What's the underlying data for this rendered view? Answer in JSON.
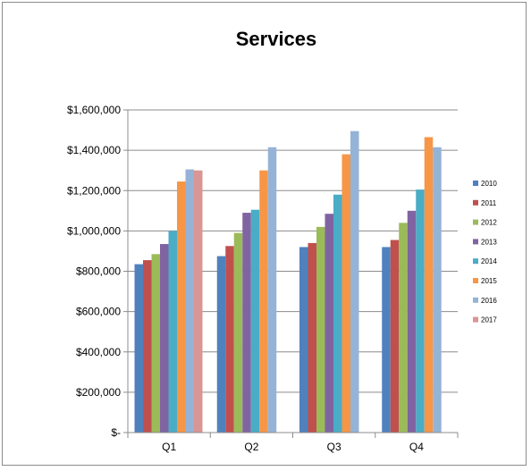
{
  "chart_data": {
    "type": "bar",
    "title": "Services",
    "xlabel": "",
    "ylabel": "",
    "categories": [
      "Q1",
      "Q2",
      "Q3",
      "Q4"
    ],
    "y_ticks": [
      "$-",
      "$200,000",
      "$400,000",
      "$600,000",
      "$800,000",
      "$1,000,000",
      "$1,200,000",
      "$1,400,000",
      "$1,600,000"
    ],
    "ylim": [
      0,
      1600000
    ],
    "grid": true,
    "legend_position": "right",
    "series": [
      {
        "name": "2010",
        "color": "#4f81bd",
        "values": [
          835000,
          875000,
          920000,
          920000
        ]
      },
      {
        "name": "2011",
        "color": "#c0504d",
        "values": [
          855000,
          925000,
          940000,
          955000
        ]
      },
      {
        "name": "2012",
        "color": "#9bbb59",
        "values": [
          885000,
          990000,
          1020000,
          1040000
        ]
      },
      {
        "name": "2013",
        "color": "#8064a2",
        "values": [
          935000,
          1090000,
          1085000,
          1100000
        ]
      },
      {
        "name": "2014",
        "color": "#4bacc6",
        "values": [
          1000000,
          1105000,
          1180000,
          1205000
        ]
      },
      {
        "name": "2015",
        "color": "#f79646",
        "values": [
          1245000,
          1300000,
          1380000,
          1465000
        ]
      },
      {
        "name": "2016",
        "color": "#95b3d7",
        "values": [
          1305000,
          1415000,
          1495000,
          1415000
        ]
      },
      {
        "name": "2017",
        "color": "#d99694",
        "values": [
          1300000,
          null,
          null,
          null
        ]
      }
    ]
  }
}
